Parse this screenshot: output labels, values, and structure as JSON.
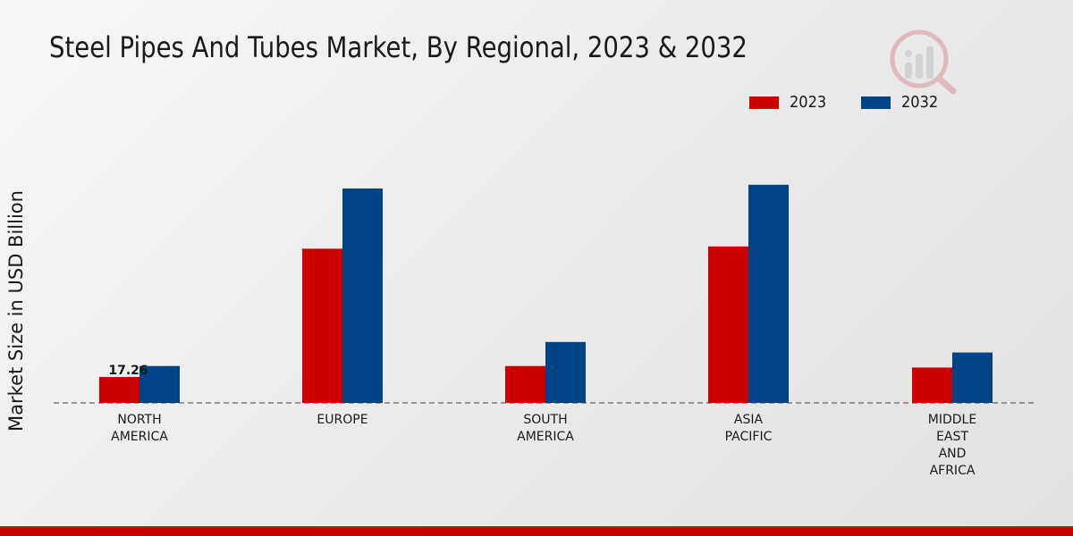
{
  "chart_data": {
    "type": "bar",
    "title": "Steel Pipes And Tubes Market, By Regional, 2023 & 2032",
    "ylabel": "Market Size in USD Billion",
    "xlabel": "",
    "categories": [
      [
        "NORTH",
        "AMERICA"
      ],
      [
        "EUROPE"
      ],
      [
        "SOUTH",
        "AMERICA"
      ],
      [
        "ASIA",
        "PACIFIC"
      ],
      [
        "MIDDLE",
        "EAST",
        "AND",
        "AFRICA"
      ]
    ],
    "series": [
      {
        "name": "2023",
        "color": "#cc0000",
        "values": [
          17.26,
          102.5,
          24.5,
          104.0,
          23.5
        ]
      },
      {
        "name": "2032",
        "color": "#004488",
        "values": [
          24.5,
          142.5,
          40.5,
          145.0,
          33.5
        ]
      }
    ],
    "data_labels": [
      {
        "series": 0,
        "index": 0,
        "text": "17.26"
      }
    ],
    "ylim": [
      0,
      250
    ],
    "grid": false,
    "legend_position": "top-right"
  },
  "colors": {
    "brand_bar": "#cc0000"
  }
}
